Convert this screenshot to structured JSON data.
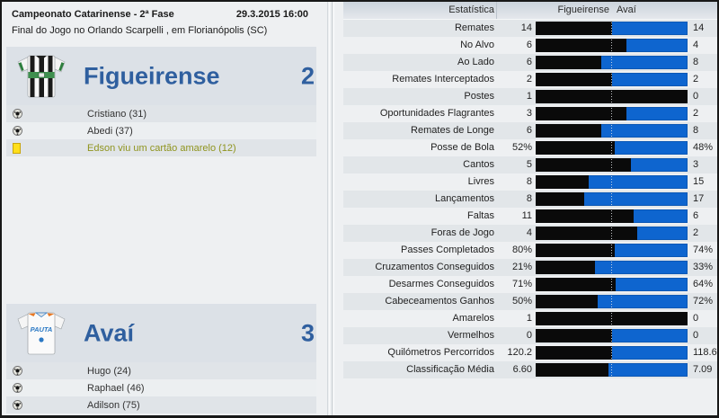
{
  "match_header": {
    "competition": "Campeonato Catarinense - 2ª Fase",
    "datetime": "29.3.2015 16:00",
    "location": "Final do Jogo no Orlando Scarpelli , em Florianópolis (SC)"
  },
  "home_team": {
    "name": "Figueirense",
    "score": "2",
    "events": [
      {
        "icon": "goal",
        "text": "Cristiano (31)"
      },
      {
        "icon": "goal",
        "text": "Abedi (37)"
      },
      {
        "icon": "yellow-card",
        "text": "Edson viu um cartão amarelo (12)"
      }
    ]
  },
  "away_team": {
    "name": "Avaí",
    "score": "3",
    "events": [
      {
        "icon": "goal",
        "text": "Hugo (24)"
      },
      {
        "icon": "goal",
        "text": "Raphael (46)"
      },
      {
        "icon": "goal",
        "text": "Adilson (75)"
      }
    ]
  },
  "stats_table": {
    "header": {
      "stat": "Estatística",
      "home": "Figueirense",
      "away": "Avaí"
    },
    "rows": [
      {
        "label": "Remates",
        "home": "14",
        "away": "14",
        "home_val": 14,
        "away_val": 14
      },
      {
        "label": "No Alvo",
        "home": "6",
        "away": "4",
        "home_val": 6,
        "away_val": 4
      },
      {
        "label": "Ao Lado",
        "home": "6",
        "away": "8",
        "home_val": 6,
        "away_val": 8
      },
      {
        "label": "Remates Interceptados",
        "home": "2",
        "away": "2",
        "home_val": 2,
        "away_val": 2
      },
      {
        "label": "Postes",
        "home": "1",
        "away": "0",
        "home_val": 1,
        "away_val": 0
      },
      {
        "label": "Oportunidades Flagrantes",
        "home": "3",
        "away": "2",
        "home_val": 3,
        "away_val": 2
      },
      {
        "label": "Remates de Longe",
        "home": "6",
        "away": "8",
        "home_val": 6,
        "away_val": 8
      },
      {
        "label": "Posse de Bola",
        "home": "52%",
        "away": "48%",
        "home_val": 52,
        "away_val": 48
      },
      {
        "label": "Cantos",
        "home": "5",
        "away": "3",
        "home_val": 5,
        "away_val": 3
      },
      {
        "label": "Livres",
        "home": "8",
        "away": "15",
        "home_val": 8,
        "away_val": 15
      },
      {
        "label": "Lançamentos",
        "home": "8",
        "away": "17",
        "home_val": 8,
        "away_val": 17
      },
      {
        "label": "Faltas",
        "home": "11",
        "away": "6",
        "home_val": 11,
        "away_val": 6
      },
      {
        "label": "Foras de Jogo",
        "home": "4",
        "away": "2",
        "home_val": 4,
        "away_val": 2
      },
      {
        "label": "Passes Completados",
        "home": "80%",
        "away": "74%",
        "home_val": 80,
        "away_val": 74
      },
      {
        "label": "Cruzamentos Conseguidos",
        "home": "21%",
        "away": "33%",
        "home_val": 21,
        "away_val": 33
      },
      {
        "label": "Desarmes Conseguidos",
        "home": "71%",
        "away": "64%",
        "home_val": 71,
        "away_val": 64
      },
      {
        "label": "Cabeceamentos Ganhos",
        "home": "50%",
        "away": "72%",
        "home_val": 50,
        "away_val": 72
      },
      {
        "label": "Amarelos",
        "home": "1",
        "away": "0",
        "home_val": 1,
        "away_val": 0
      },
      {
        "label": "Vermelhos",
        "home": "0",
        "away": "0",
        "home_val": 0,
        "away_val": 0
      },
      {
        "label": "Quilómetros Percorridos",
        "home": "120.2",
        "away": "118.6",
        "home_val": 120.2,
        "away_val": 118.6
      },
      {
        "label": "Classificação Média",
        "home": "6.60",
        "away": "7.09",
        "home_val": 6.6,
        "away_val": 7.09
      }
    ]
  },
  "colors": {
    "home_bar": "#0a0a0a",
    "away_bar": "#0e65cf",
    "team_name": "#2f5f9f",
    "yellow_card_text": "#8f941e"
  }
}
